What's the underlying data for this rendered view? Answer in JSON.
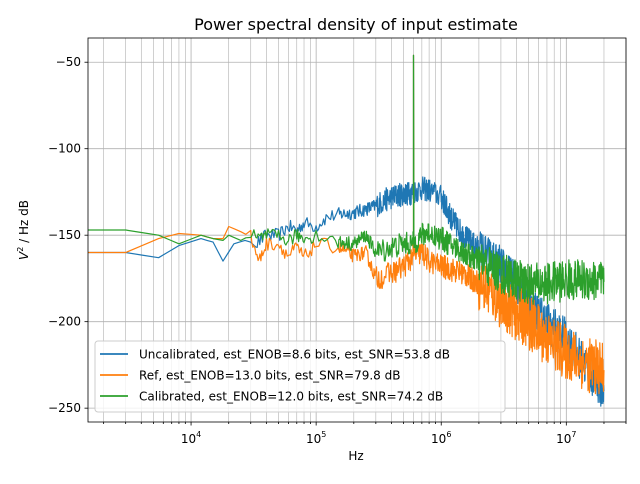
{
  "chart_data": {
    "type": "line",
    "title": "Power spectral density of input estimate",
    "xlabel": "Hz",
    "ylabel_base": "V",
    "ylabel_exp": "2",
    "ylabel_rest": " / Hz dB",
    "xscale": "log",
    "xlim": [
      1500,
      30000000
    ],
    "ylim": [
      -258,
      -36
    ],
    "grid": true,
    "legend_loc": "lower left",
    "xticks": [
      {
        "value": 10000,
        "base": "10",
        "exp": "4"
      },
      {
        "value": 100000,
        "base": "10",
        "exp": "5"
      },
      {
        "value": 1000000,
        "base": "10",
        "exp": "6"
      },
      {
        "value": 10000000,
        "base": "10",
        "exp": "7"
      }
    ],
    "yticks": [
      {
        "value": -50,
        "label": "−50"
      },
      {
        "value": -100,
        "label": "−100"
      },
      {
        "value": -150,
        "label": "−150"
      },
      {
        "value": -200,
        "label": "−200"
      },
      {
        "value": -250,
        "label": "−250"
      }
    ],
    "peak": {
      "x": 600000,
      "level": -46
    },
    "series": [
      {
        "name": "Uncalibrated, est_ENOB=8.6 bits, est_SNR=53.8 dB",
        "color": "#1f77b4",
        "x": [
          1500,
          3000,
          5500,
          8000,
          12000,
          15000,
          18000,
          22000,
          27000,
          33000,
          40000,
          50000,
          60000,
          70000,
          80000,
          100000,
          120000,
          150000,
          200000,
          250000,
          300000,
          350000,
          400000,
          450000,
          500000,
          550000,
          600000,
          700000,
          800000,
          1000000,
          1200000,
          1500000,
          2000000,
          3000000,
          4000000,
          5000000,
          7000000,
          10000000,
          15000000,
          20000000
        ],
        "y": [
          -160,
          -160,
          -163,
          -156,
          -152,
          -154,
          -165,
          -155,
          -153,
          -155,
          -150,
          -150,
          -145,
          -147,
          -143,
          -145,
          -140,
          -138,
          -137,
          -135,
          -133,
          -130,
          -128,
          -127,
          -126,
          -126,
          -125,
          -123,
          -124,
          -128,
          -140,
          -150,
          -158,
          -168,
          -178,
          -190,
          -200,
          -210,
          -228,
          -240
        ]
      },
      {
        "name": "Ref, est_ENOB=13.0 bits, est_SNR=79.8 dB",
        "color": "#ff7f0e",
        "x": [
          1500,
          3000,
          5500,
          8000,
          12000,
          15000,
          18000,
          20000,
          25000,
          30000,
          35000,
          40000,
          50000,
          60000,
          70000,
          80000,
          100000,
          150000,
          200000,
          250000,
          300000,
          400000,
          500000,
          600000,
          700000,
          800000,
          1000000,
          1500000,
          2000000,
          3000000,
          4000000,
          5000000,
          7000000,
          10000000,
          15000000,
          20000000
        ],
        "y": [
          -160,
          -160,
          -152,
          -149,
          -150,
          -152,
          -152,
          -145,
          -148,
          -151,
          -165,
          -155,
          -155,
          -162,
          -157,
          -163,
          -155,
          -157,
          -162,
          -160,
          -175,
          -172,
          -168,
          -162,
          -160,
          -165,
          -168,
          -172,
          -178,
          -188,
          -195,
          -200,
          -210,
          -218,
          -225,
          -228
        ]
      },
      {
        "name": "Calibrated, est_ENOB=12.0 bits, est_SNR=74.2 dB",
        "color": "#2ca02c",
        "x": [
          1500,
          3000,
          5500,
          8000,
          12000,
          15000,
          18000,
          20000,
          25000,
          30000,
          35000,
          40000,
          50000,
          60000,
          70000,
          80000,
          100000,
          150000,
          200000,
          250000,
          300000,
          400000,
          500000,
          600000,
          700000,
          800000,
          1000000,
          1500000,
          2000000,
          3000000,
          4000000,
          5000000,
          7000000,
          10000000,
          15000000,
          20000000
        ],
        "y": [
          -147,
          -147,
          -150,
          -155,
          -150,
          -152,
          -153,
          -150,
          -153,
          -150,
          -152,
          -150,
          -151,
          -153,
          -150,
          -152,
          -150,
          -154,
          -155,
          -150,
          -160,
          -157,
          -155,
          -155,
          -150,
          -148,
          -152,
          -160,
          -165,
          -172,
          -176,
          -178,
          -178,
          -176,
          -176,
          -177
        ]
      }
    ]
  }
}
